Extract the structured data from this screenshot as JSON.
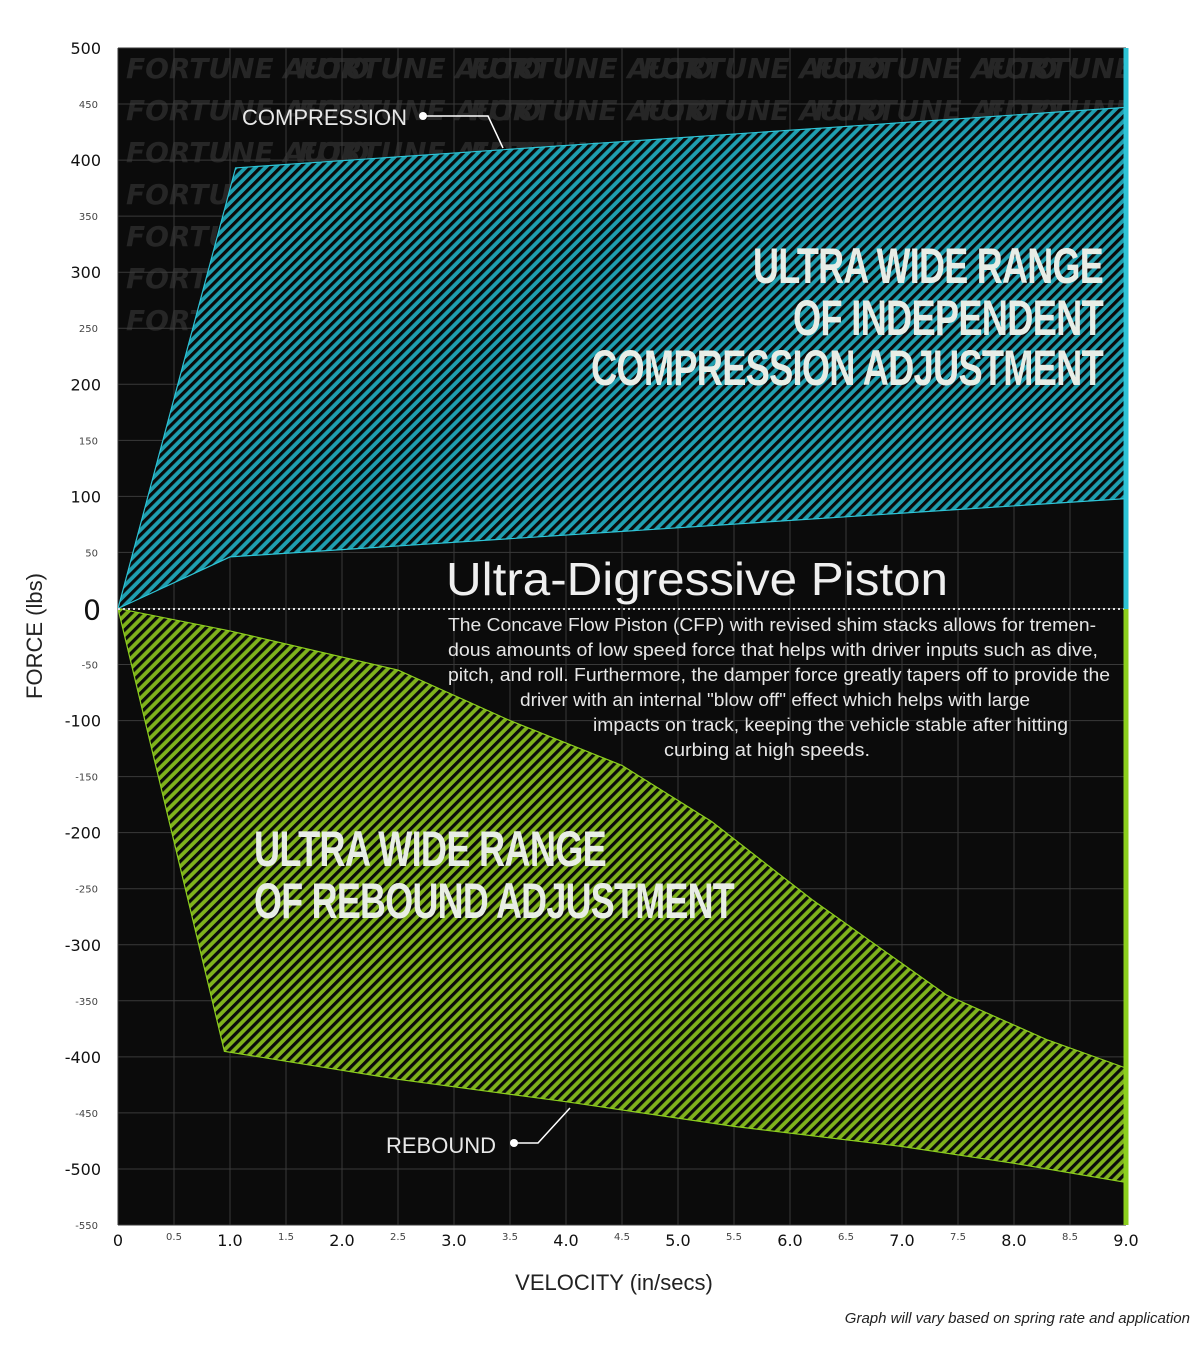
{
  "chart_data": {
    "type": "area",
    "xlabel": "VELOCITY (in/secs)",
    "ylabel": "FORCE (lbs)",
    "xlim": [
      0,
      9
    ],
    "ylim": [
      -550,
      500
    ],
    "x_major_ticks": [
      "0",
      "1.0",
      "2.0",
      "3.0",
      "4.0",
      "5.0",
      "6.0",
      "7.0",
      "8.0",
      "9.0"
    ],
    "x_minor_ticks": [
      "0.5",
      "1.5",
      "2.5",
      "3.5",
      "4.5",
      "5.5",
      "6.5",
      "7.5",
      "8.5"
    ],
    "y_major_ticks": [
      "500",
      "400",
      "300",
      "200",
      "100",
      "0",
      "-100",
      "-200",
      "-300",
      "-400",
      "-500"
    ],
    "y_minor_ticks": [
      "450",
      "350",
      "250",
      "150",
      "50",
      "-50",
      "-150",
      "-250",
      "-350",
      "-450",
      "-550"
    ],
    "series": [
      {
        "name": "COMPRESSION",
        "color": "#2ec4d6",
        "upper": [
          [
            0,
            0
          ],
          [
            1.05,
            393
          ],
          [
            9,
            447
          ]
        ],
        "lower": [
          [
            0,
            0
          ],
          [
            1.0,
            46
          ],
          [
            9,
            98
          ]
        ]
      },
      {
        "name": "REBOUND",
        "color": "#8ccf1e",
        "upper": [
          [
            0,
            0
          ],
          [
            1.0,
            -20
          ],
          [
            2.5,
            -55
          ],
          [
            3.5,
            -100
          ],
          [
            4.5,
            -140
          ],
          [
            5.3,
            -190
          ],
          [
            6.2,
            -260
          ],
          [
            7.4,
            -345
          ],
          [
            8.3,
            -385
          ],
          [
            9,
            -410
          ]
        ],
        "lower": [
          [
            0,
            0
          ],
          [
            0.95,
            -395
          ],
          [
            2.5,
            -420
          ],
          [
            4.0,
            -440
          ],
          [
            5.5,
            -462
          ],
          [
            7.0,
            -480
          ],
          [
            8.0,
            -495
          ],
          [
            9,
            -512
          ]
        ]
      }
    ],
    "headings": {
      "compression": [
        "ULTRA WIDE RANGE",
        "OF INDEPENDENT",
        "COMPRESSION ADJUSTMENT"
      ],
      "rebound": [
        "ULTRA WIDE RANGE",
        "OF REBOUND ADJUSTMENT"
      ]
    },
    "annotation": {
      "title": "Ultra-Digressive Piston",
      "lines": [
        "The Concave Flow Piston (CFP) with revised shim stacks allows for tremen-",
        "dous amounts of low speed force that helps with driver inputs such as dive,",
        "pitch, and roll. Furthermore, the damper force greatly tapers off to provide the",
        "driver with an internal \"blow off\" effect which helps with large",
        "impacts on track, keeping the vehicle stable after hitting",
        "curbing at high speeds."
      ]
    },
    "watermark": "FORTUNE AUTO",
    "footnote": "Graph will vary based on spring rate and application",
    "grid": true
  }
}
